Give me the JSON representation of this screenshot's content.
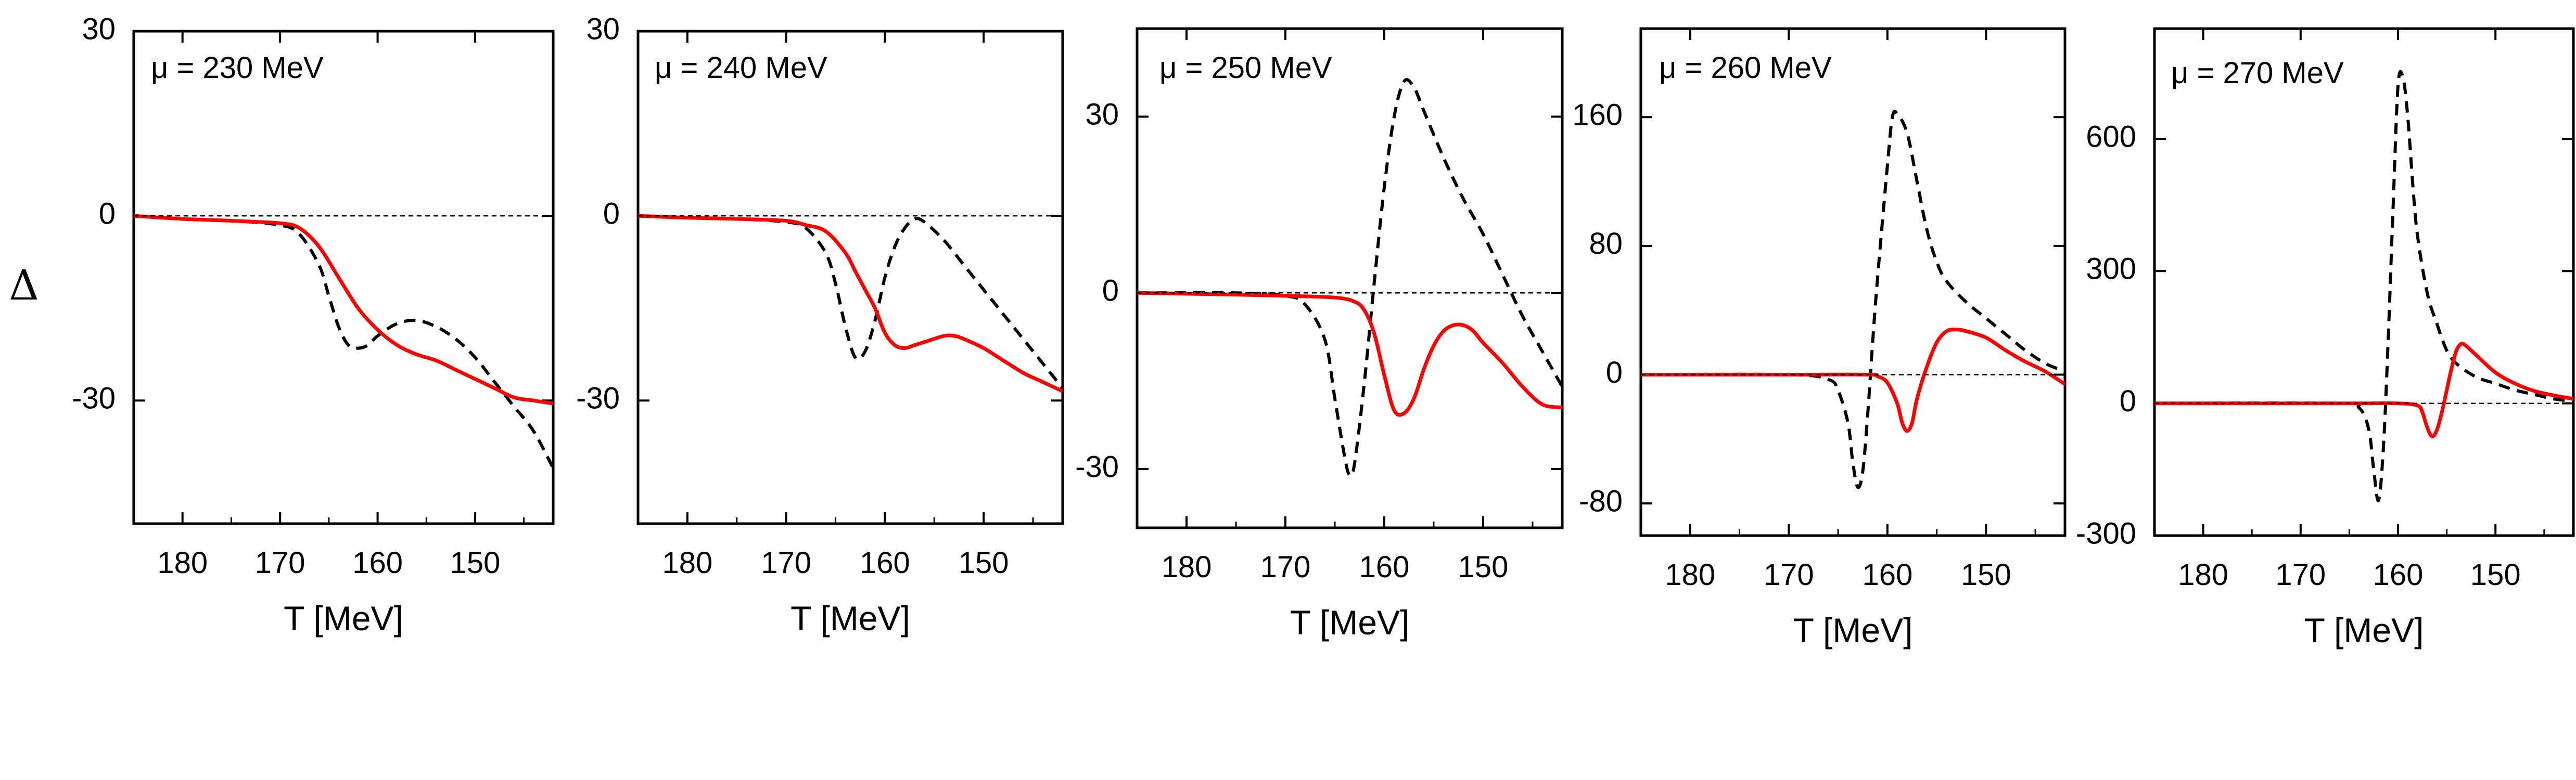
{
  "figure": {
    "ylabel": "Δ",
    "colors": {
      "solid": "#ff0000",
      "dashed": "#000000",
      "reference": "#000000"
    }
  },
  "chart_data": [
    {
      "type": "line",
      "annotation": "μ = 230 MeV",
      "xlabel": "T [MeV]",
      "xlim": [
        185,
        142
      ],
      "ylim": [
        -50,
        30
      ],
      "xticks": [
        180,
        170,
        160,
        150
      ],
      "yticks": [
        30,
        0,
        -30
      ],
      "series": [
        {
          "name": "dashed",
          "style": "dashed",
          "x": [
            185,
            180,
            175,
            170,
            168,
            166,
            165,
            164,
            163,
            162,
            161,
            160,
            158,
            156,
            154,
            152,
            150,
            148,
            146,
            144,
            142
          ],
          "y": [
            0,
            -0.5,
            -0.8,
            -1.5,
            -3,
            -8,
            -13,
            -18,
            -21,
            -21.5,
            -21,
            -19.5,
            -17.5,
            -17,
            -18,
            -20,
            -23,
            -27,
            -31,
            -35,
            -41
          ]
        },
        {
          "name": "solid",
          "style": "solid",
          "x": [
            185,
            180,
            175,
            170,
            168,
            166,
            164,
            162,
            160,
            158,
            156,
            154,
            152,
            150,
            148,
            146,
            144,
            142
          ],
          "y": [
            0,
            -0.5,
            -0.8,
            -1.2,
            -2,
            -5,
            -10,
            -15,
            -18.5,
            -21,
            -22.5,
            -23.5,
            -25,
            -26.5,
            -28,
            -29.5,
            -30,
            -30.5
          ]
        },
        {
          "name": "reference",
          "style": "thin-dashed",
          "x": [
            185,
            142
          ],
          "y": [
            0,
            0
          ]
        }
      ]
    },
    {
      "type": "line",
      "annotation": "μ = 240 MeV",
      "xlabel": "T [MeV]",
      "xlim": [
        185,
        142
      ],
      "ylim": [
        -50,
        30
      ],
      "xticks": [
        180,
        170,
        160,
        150
      ],
      "yticks": [
        30,
        0,
        -30
      ],
      "series": [
        {
          "name": "dashed",
          "style": "dashed",
          "x": [
            185,
            180,
            175,
            170,
            168,
            166,
            165,
            164,
            163,
            162,
            161,
            160,
            159,
            158,
            157,
            156,
            154,
            152,
            150,
            148,
            146,
            144,
            142
          ],
          "y": [
            0,
            -0.3,
            -0.5,
            -1,
            -2,
            -6,
            -11,
            -18,
            -23,
            -22,
            -17,
            -10,
            -5,
            -2,
            -0.5,
            -1,
            -4,
            -8,
            -12,
            -16,
            -20,
            -24,
            -28
          ]
        },
        {
          "name": "solid",
          "style": "solid",
          "x": [
            185,
            180,
            175,
            170,
            168,
            166,
            164,
            163,
            162,
            161,
            160,
            159,
            158,
            157,
            156,
            154,
            153,
            152,
            150,
            148,
            146,
            144,
            142
          ],
          "y": [
            0,
            -0.3,
            -0.5,
            -0.8,
            -1.5,
            -2.5,
            -6,
            -9,
            -12,
            -15,
            -19,
            -21,
            -21.5,
            -21,
            -20.5,
            -19.5,
            -19.5,
            -20,
            -21.5,
            -23.5,
            -25.5,
            -27,
            -28.5
          ]
        },
        {
          "name": "reference",
          "style": "thin-dashed",
          "x": [
            185,
            142
          ],
          "y": [
            0,
            0
          ]
        }
      ]
    },
    {
      "type": "line",
      "annotation": "μ = 250 MeV",
      "xlabel": "T [MeV]",
      "xlim": [
        185,
        142
      ],
      "ylim": [
        -40,
        45
      ],
      "xticks": [
        180,
        170,
        160,
        150
      ],
      "yticks": [
        30,
        0,
        -30
      ],
      "series": [
        {
          "name": "dashed",
          "style": "dashed",
          "x": [
            185,
            175,
            170,
            168,
            166,
            165,
            164,
            163.5,
            163,
            162,
            161,
            160,
            159,
            158,
            157,
            156,
            154,
            152,
            150,
            148,
            146,
            144,
            142
          ],
          "y": [
            0,
            0,
            -0.5,
            -2,
            -8,
            -18,
            -28,
            -31,
            -29,
            -15,
            2,
            18,
            30,
            36,
            35,
            31,
            23,
            16,
            10,
            3,
            -4,
            -10,
            -16
          ]
        },
        {
          "name": "solid",
          "style": "solid",
          "x": [
            185,
            175,
            170,
            165,
            163,
            162,
            161,
            160,
            159,
            158,
            157,
            156,
            155,
            154,
            153,
            152,
            151,
            150,
            148,
            146,
            144,
            142
          ],
          "y": [
            0,
            -0.3,
            -0.5,
            -0.8,
            -1.5,
            -3,
            -7,
            -14,
            -20,
            -20.5,
            -18,
            -13,
            -9,
            -6.5,
            -5.5,
            -5.5,
            -6.5,
            -8.5,
            -12,
            -16,
            -19,
            -19.5
          ]
        },
        {
          "name": "reference",
          "style": "thin-dashed",
          "x": [
            185,
            142
          ],
          "y": [
            0,
            0
          ]
        }
      ]
    },
    {
      "type": "line",
      "annotation": "μ = 260 MeV",
      "xlabel": "T [MeV]",
      "xlim": [
        185,
        142
      ],
      "ylim": [
        -100,
        215
      ],
      "xticks": [
        180,
        170,
        160,
        150
      ],
      "yticks": [
        160,
        80,
        0,
        -80
      ],
      "series": [
        {
          "name": "dashed",
          "style": "dashed",
          "x": [
            185,
            170,
            166,
            165,
            164,
            163.5,
            163,
            162.5,
            162,
            161.5,
            161,
            160,
            159.5,
            159,
            158,
            157,
            156,
            155,
            154,
            152,
            150,
            148,
            146,
            144,
            142
          ],
          "y": [
            0,
            0,
            -3,
            -10,
            -30,
            -55,
            -70,
            -60,
            -25,
            20,
            60,
            130,
            160,
            162,
            150,
            120,
            90,
            70,
            58,
            45,
            35,
            25,
            15,
            7,
            2
          ]
        },
        {
          "name": "solid",
          "style": "solid",
          "x": [
            185,
            170,
            162,
            161,
            160,
            159,
            158.5,
            158,
            157.5,
            157,
            156,
            155,
            154,
            153,
            152,
            150,
            148,
            146,
            144,
            142
          ],
          "y": [
            0,
            0,
            0,
            -1,
            -5,
            -18,
            -30,
            -35,
            -30,
            -15,
            5,
            20,
            27,
            28,
            27,
            23,
            15,
            8,
            2,
            -6
          ]
        },
        {
          "name": "reference",
          "style": "thin-dashed",
          "x": [
            185,
            142
          ],
          "y": [
            0,
            0
          ]
        }
      ]
    },
    {
      "type": "line",
      "annotation": "μ = 270 MeV",
      "xlabel": "T [MeV]",
      "xlim": [
        185,
        142
      ],
      "ylim": [
        -300,
        850
      ],
      "xticks": [
        180,
        170,
        160,
        150
      ],
      "yticks": [
        600,
        300,
        0,
        -300
      ],
      "series": [
        {
          "name": "dashed",
          "style": "dashed",
          "x": [
            185,
            166,
            164,
            163,
            162.5,
            162,
            161.5,
            161,
            160.5,
            160,
            159.5,
            159,
            158.5,
            158,
            157,
            156,
            155,
            154,
            152,
            150,
            148,
            146,
            144,
            142
          ],
          "y": [
            0,
            0,
            -10,
            -60,
            -150,
            -220,
            -100,
            150,
            450,
            720,
            740,
            650,
            500,
            380,
            250,
            180,
            120,
            90,
            60,
            45,
            30,
            20,
            10,
            5
          ]
        },
        {
          "name": "solid",
          "style": "solid",
          "x": [
            185,
            165,
            160,
            158,
            157.5,
            157,
            156.5,
            156,
            155.5,
            155,
            154.5,
            154,
            153.5,
            153,
            152,
            150,
            148,
            146,
            144,
            142
          ],
          "y": [
            0,
            0,
            0,
            -5,
            -20,
            -55,
            -75,
            -60,
            -20,
            30,
            80,
            120,
            135,
            130,
            110,
            70,
            45,
            28,
            18,
            10
          ]
        },
        {
          "name": "reference",
          "style": "thin-dashed",
          "x": [
            185,
            142
          ],
          "y": [
            0,
            0
          ]
        }
      ]
    }
  ]
}
